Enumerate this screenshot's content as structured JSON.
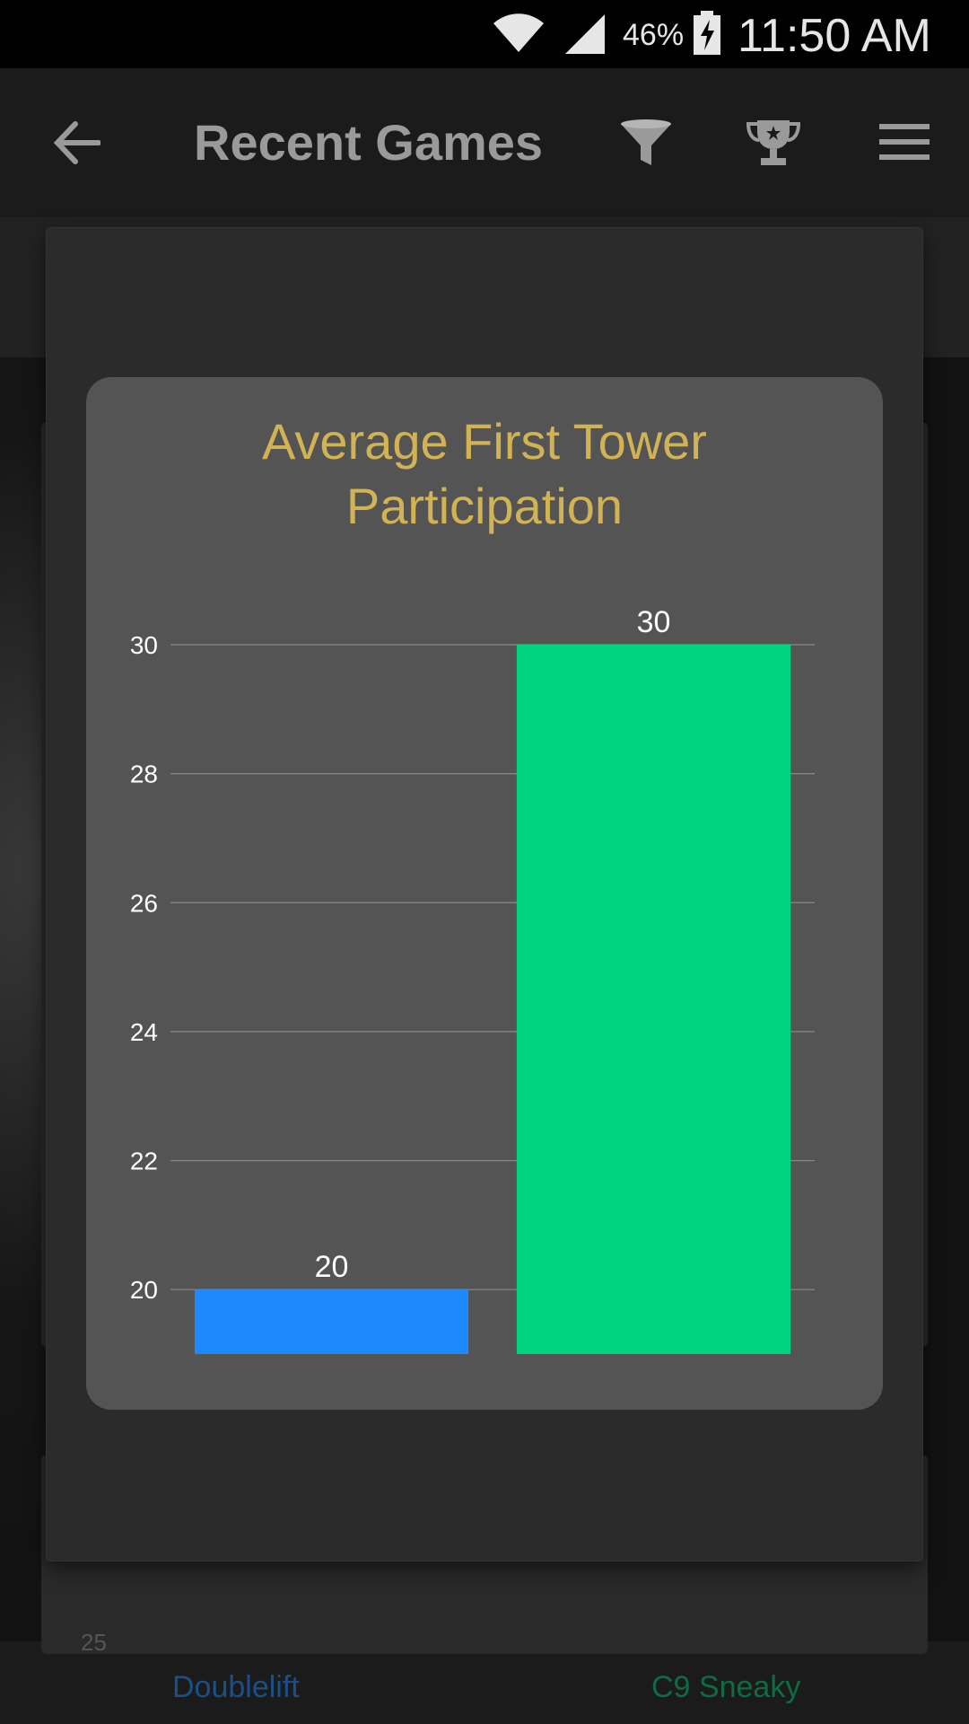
{
  "status_bar": {
    "battery": "46%",
    "time": "11:50 AM",
    "icons": [
      "wifi-icon",
      "signal-icon",
      "battery-charging-icon"
    ]
  },
  "app_bar": {
    "title": "Recent Games",
    "icons": [
      "back-arrow-icon",
      "filter-funnel-icon",
      "trophy-icon",
      "menu-icon"
    ]
  },
  "background": {
    "partial_value_left": "25"
  },
  "chart_data": {
    "type": "bar",
    "title_lines": [
      "Average First Tower",
      "Participation"
    ],
    "categories": [
      "Doublelift",
      "C9 Sneaky"
    ],
    "values": [
      20,
      30
    ],
    "colors": [
      "#1e88ff",
      "#00d47e"
    ],
    "ylim": [
      19,
      30
    ],
    "yticks": [
      20,
      22,
      24,
      26,
      28,
      30
    ],
    "xlabel": "",
    "ylabel": "",
    "grid": true
  },
  "bottom_bar": {
    "left_player": "Doublelift",
    "right_player": "C9 Sneaky",
    "left_color": "#1b4f86",
    "right_color": "#0d6b46"
  }
}
